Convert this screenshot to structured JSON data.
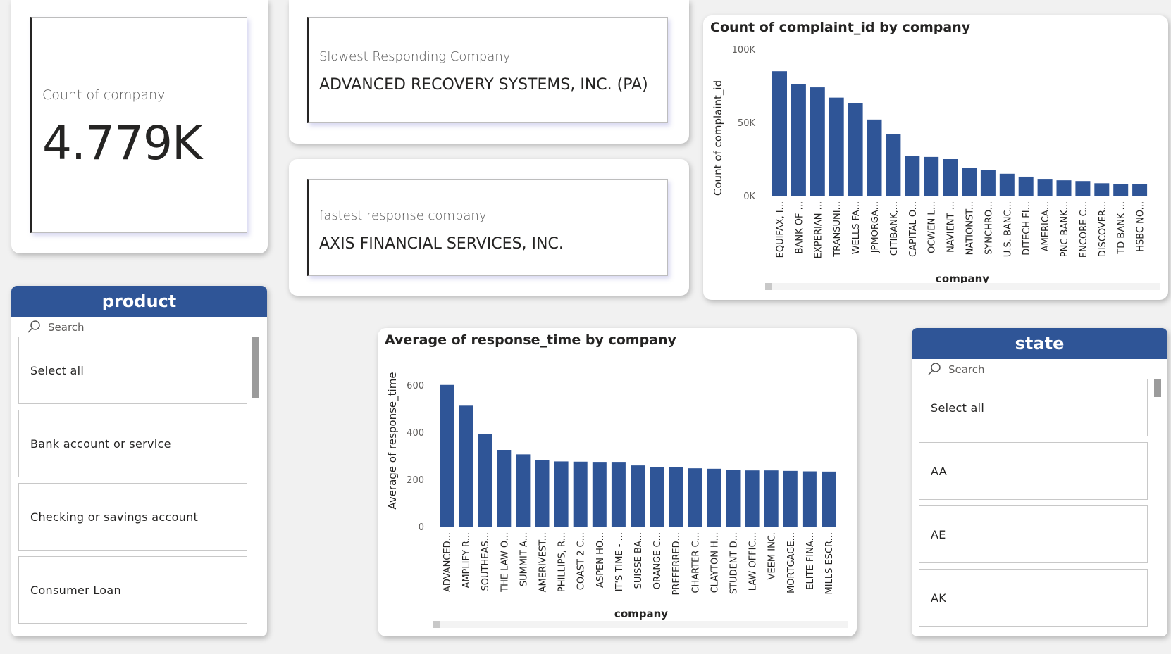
{
  "kpi": {
    "count_label": "Count of company",
    "count_value": "4.779K",
    "slowest_label": "Slowest Responding Company",
    "slowest_value": "ADVANCED RECOVERY SYSTEMS, INC. (PA)",
    "fastest_label": "fastest response company",
    "fastest_value": "AXIS FINANCIAL SERVICES, INC."
  },
  "product_slicer": {
    "title": "product",
    "search_placeholder": "Search",
    "items": [
      "Select all",
      "Bank account or service",
      "Checking or savings account",
      "Consumer Loan"
    ]
  },
  "state_slicer": {
    "title": "state",
    "search_placeholder": "Search",
    "items": [
      "Select all",
      "AA",
      "AE",
      "AK"
    ]
  },
  "colors": {
    "bar": "#2f5597",
    "header": "#2f5597"
  },
  "chart_data": [
    {
      "type": "bar",
      "title": "Count of complaint_id by company",
      "xlabel": "company",
      "ylabel": "Count of complaint_id",
      "ylim": [
        0,
        100000
      ],
      "ytick_labels": [
        "0K",
        "50K",
        "100K"
      ],
      "ytick_values": [
        0,
        50000,
        100000
      ],
      "categories": [
        "EQUIFAX, I...",
        "BANK OF ...",
        "EXPERIAN ...",
        "TRANSUNI...",
        "WELLS FA...",
        "JPMORGA...",
        "CITIBANK,...",
        "CAPITAL O...",
        "OCWEN L...",
        "NAVIENT ...",
        "NATIONST...",
        "SYNCHRO...",
        "U.S. BANC...",
        "DITECH FI...",
        "AMERICA...",
        "PNC BANK...",
        "ENCORE C...",
        "DISCOVER...",
        "TD BANK ...",
        "HSBC NO..."
      ],
      "values": [
        85000,
        76000,
        74000,
        67000,
        63000,
        52000,
        42000,
        27000,
        26500,
        25000,
        19000,
        17500,
        15000,
        13000,
        11500,
        10500,
        10000,
        8500,
        8000,
        7800
      ],
      "grid": false
    },
    {
      "type": "bar",
      "title": "Average of response_time by company",
      "xlabel": "company",
      "ylabel": "Average of response_time",
      "ylim": [
        0,
        650
      ],
      "ytick_labels": [
        "0",
        "200",
        "400",
        "600"
      ],
      "ytick_values": [
        0,
        200,
        400,
        600
      ],
      "categories": [
        "ADVANCED...",
        "AMPLIFY R...",
        "SOUTHEAS...",
        "THE LAW O...",
        "SUMMIT A...",
        "AMERIVEST...",
        "PHILLIPS, R...",
        "COAST 2 C...",
        "ASPEN HO...",
        "IT'S TIME - ...",
        "SUISSE BA...",
        "ORANGE C...",
        "PREFERRED...",
        "CHARTER C...",
        "CLAYTON H...",
        "STUDENT D...",
        "LAW OFFIC...",
        "VEEM INC.",
        "MORTGAGE...",
        "ELITE FINA...",
        "MILLS ESCR..."
      ],
      "values": [
        600,
        512,
        393,
        325,
        306,
        283,
        276,
        275,
        274,
        274,
        259,
        253,
        251,
        247,
        245,
        240,
        238,
        238,
        236,
        234,
        233
      ],
      "grid": false
    }
  ]
}
